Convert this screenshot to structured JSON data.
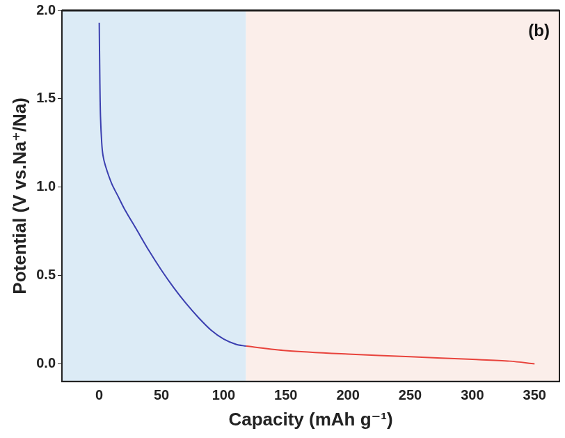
{
  "chart_data": {
    "type": "line",
    "x_label": "Capacity (mAh g⁻¹)",
    "y_label": "Potential (V vs.Na⁺/Na)",
    "annotations": [
      {
        "text": "(b)"
      }
    ],
    "xlim": [
      -30,
      370
    ],
    "xticks": [
      0,
      50,
      100,
      150,
      200,
      250,
      300,
      350
    ],
    "ylim": [
      -0.1,
      2.0
    ],
    "yticks": [
      {
        "value": 0,
        "label": "0.0"
      },
      {
        "value": 0.5,
        "label": "0.5"
      },
      {
        "value": 1,
        "label": "1.0"
      },
      {
        "value": 1.5,
        "label": "1.5"
      },
      {
        "value": 2,
        "label": "2.0"
      }
    ],
    "grid": false,
    "shaded_regions": [
      {
        "xmin": -30,
        "xmax": 118,
        "color": "#dcebf6"
      },
      {
        "xmin": 118,
        "xmax": 370,
        "color": "#fbeeea"
      }
    ],
    "series": [
      {
        "color": "#3b3fb0",
        "x": [
          0,
          0.5,
          1,
          2,
          3,
          5,
          10,
          15,
          20,
          30,
          40,
          50,
          60,
          70,
          80,
          90,
          100,
          110,
          118
        ],
        "values": [
          1.93,
          1.6,
          1.4,
          1.25,
          1.18,
          1.12,
          1.02,
          0.95,
          0.88,
          0.76,
          0.64,
          0.53,
          0.43,
          0.34,
          0.26,
          0.19,
          0.14,
          0.11,
          0.1
        ]
      },
      {
        "color": "#e8433c",
        "x": [
          118,
          150,
          200,
          250,
          300,
          330,
          350
        ],
        "values": [
          0.1,
          0.075,
          0.055,
          0.04,
          0.025,
          0.015,
          0.0
        ]
      }
    ]
  }
}
